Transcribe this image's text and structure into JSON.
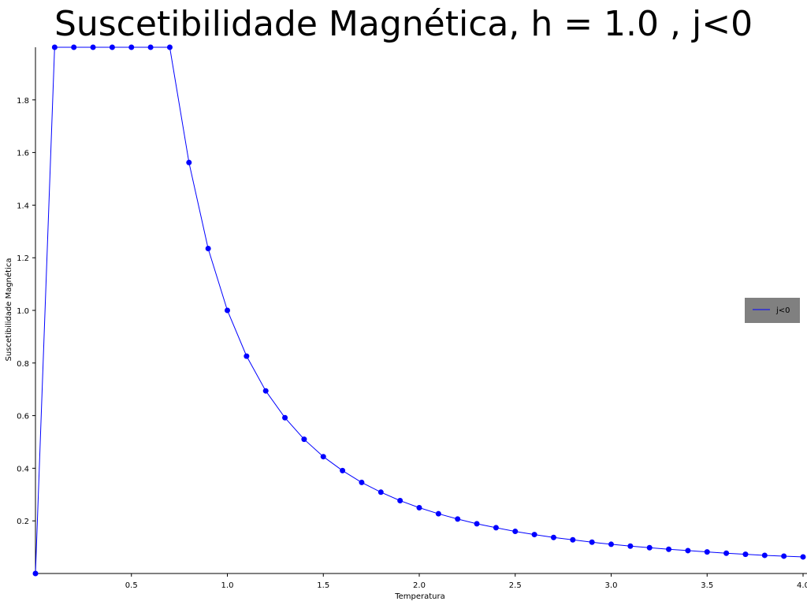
{
  "chart_data": {
    "type": "line",
    "title": "Suscetibilidade Magnética, h = 1.0 , j<0",
    "xlabel": "Temperatura",
    "ylabel": "Suscetibilidade Magnética",
    "xlim": [
      0.0,
      4.0
    ],
    "ylim": [
      0.0,
      2.0
    ],
    "xticks": [
      "0.5",
      "1.0",
      "1.5",
      "2.0",
      "2.5",
      "3.0",
      "3.5",
      "4.0"
    ],
    "yticks": [
      "0.2",
      "0.4",
      "0.6",
      "0.8",
      "1.0",
      "1.2",
      "1.4",
      "1.6",
      "1.8"
    ],
    "grid": false,
    "legend_position": "center-right",
    "series": [
      {
        "name": "j<0",
        "color": "#0000ff",
        "marker": "circle",
        "x": [
          0.0,
          0.1,
          0.2,
          0.3,
          0.4,
          0.5,
          0.6,
          0.7,
          0.8,
          0.9,
          1.0,
          1.1,
          1.2,
          1.3,
          1.4,
          1.5,
          1.6,
          1.7,
          1.8,
          1.9,
          2.0,
          2.1,
          2.2,
          2.3,
          2.4,
          2.5,
          2.6,
          2.7,
          2.8,
          2.9,
          3.0,
          3.1,
          3.2,
          3.3,
          3.4,
          3.5,
          3.6,
          3.7,
          3.8,
          3.9,
          4.0
        ],
        "y": [
          0.0,
          2.0,
          2.0,
          2.0,
          2.0,
          2.0,
          2.0,
          2.0,
          1.562,
          1.235,
          1.0,
          0.826,
          0.694,
          0.592,
          0.51,
          0.444,
          0.391,
          0.346,
          0.309,
          0.277,
          0.25,
          0.227,
          0.207,
          0.189,
          0.174,
          0.16,
          0.148,
          0.137,
          0.128,
          0.119,
          0.111,
          0.104,
          0.098,
          0.092,
          0.087,
          0.082,
          0.077,
          0.073,
          0.069,
          0.066,
          0.063
        ]
      }
    ]
  }
}
